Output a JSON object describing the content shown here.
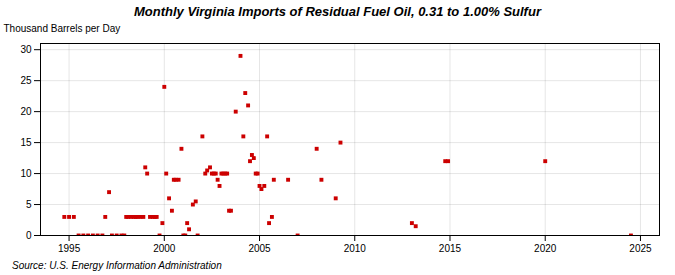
{
  "chart_data": {
    "type": "scatter",
    "title": "Monthly Virginia Imports of Residual Fuel Oil, 0.31 to 1.00% Sulfur",
    "ylabel": "Thousand Barrels per Day",
    "source": "Source: U.S. Energy Information Administration",
    "color": "#cc0000",
    "marker": "square",
    "grid": true,
    "xlim": [
      1993.5,
      2026.0
    ],
    "ylim": [
      0,
      31
    ],
    "xticks": [
      1995,
      2000,
      2005,
      2010,
      2015,
      2020,
      2025
    ],
    "yticks": [
      0,
      5,
      10,
      15,
      20,
      25,
      30
    ],
    "x": [
      1994.75,
      1995.0,
      1995.25,
      1995.5,
      1995.75,
      1996.0,
      1996.25,
      1996.5,
      1996.75,
      1996.9,
      1997.1,
      1997.25,
      1997.5,
      1997.75,
      1997.9,
      1998.0,
      1998.1,
      1998.25,
      1998.4,
      1998.5,
      1998.6,
      1998.75,
      1998.9,
      1999.0,
      1999.1,
      1999.25,
      1999.4,
      1999.5,
      1999.6,
      1999.75,
      1999.9,
      2000.0,
      2000.1,
      2000.25,
      2000.4,
      2000.5,
      2000.6,
      2000.75,
      2000.9,
      2001.0,
      2001.1,
      2001.2,
      2001.3,
      2001.5,
      2001.65,
      2001.75,
      2002.0,
      2002.15,
      2002.25,
      2002.4,
      2002.5,
      2002.6,
      2002.7,
      2002.8,
      2002.9,
      2003.0,
      2003.1,
      2003.2,
      2003.3,
      2003.4,
      2003.5,
      2003.75,
      2004.0,
      2004.15,
      2004.25,
      2004.4,
      2004.5,
      2004.6,
      2004.7,
      2004.8,
      2004.9,
      2005.0,
      2005.1,
      2005.25,
      2005.4,
      2005.5,
      2005.65,
      2005.75,
      2006.5,
      2007.0,
      2008.0,
      2008.25,
      2009.0,
      2009.25,
      2013.0,
      2013.2,
      2014.75,
      2014.9,
      2020.0,
      2024.5
    ],
    "values": [
      3.0,
      3.0,
      3.0,
      0.0,
      0.0,
      0.0,
      0.0,
      0.0,
      0.0,
      3.0,
      7.0,
      0.0,
      0.0,
      0.0,
      0.0,
      3.0,
      3.0,
      3.0,
      3.0,
      3.0,
      3.0,
      3.0,
      3.0,
      11.0,
      10.0,
      3.0,
      3.0,
      3.0,
      3.0,
      0.0,
      2.0,
      24.0,
      10.0,
      6.0,
      4.0,
      9.0,
      9.0,
      9.0,
      14.0,
      0.0,
      0.0,
      2.0,
      1.0,
      5.0,
      5.5,
      0.0,
      16.0,
      10.0,
      10.5,
      11.0,
      10.0,
      10.0,
      10.0,
      9.0,
      8.0,
      10.0,
      10.0,
      10.0,
      10.0,
      4.0,
      4.0,
      20.0,
      29.0,
      16.0,
      23.0,
      21.0,
      12.0,
      13.0,
      12.5,
      10.0,
      10.0,
      8.0,
      7.5,
      8.0,
      16.0,
      2.0,
      3.0,
      9.0,
      9.0,
      0.0,
      14.0,
      9.0,
      6.0,
      15.0,
      2.0,
      1.5,
      12.0,
      12.0,
      12.0,
      0.0
    ]
  }
}
